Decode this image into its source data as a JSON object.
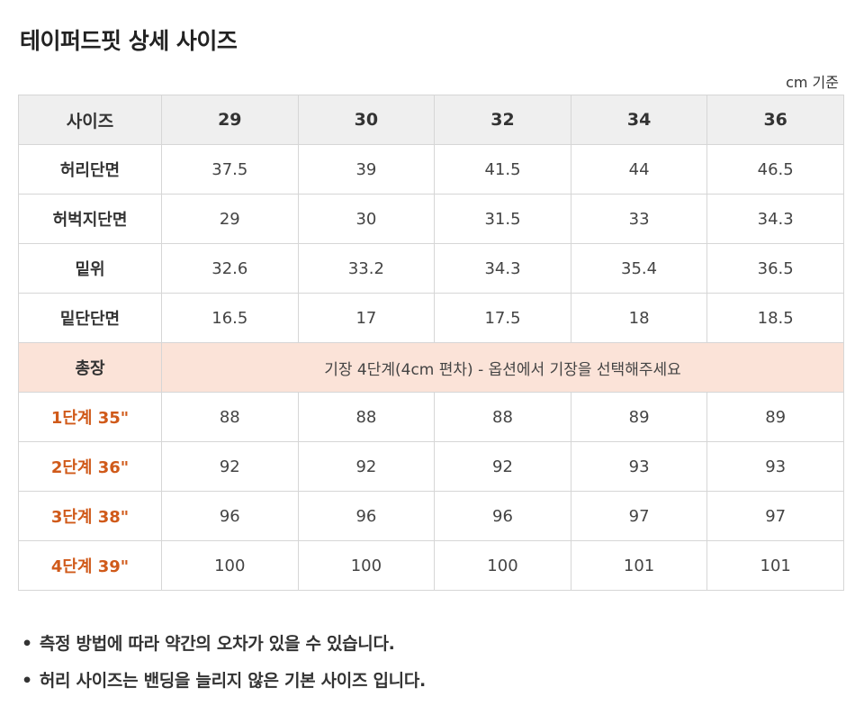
{
  "title": "테이퍼드핏 상세 사이즈",
  "unit_note": "cm 기준",
  "table": {
    "header": {
      "label": "사이즈",
      "sizes": [
        "29",
        "30",
        "32",
        "34",
        "36"
      ]
    },
    "rows": [
      {
        "label": "허리단면",
        "values": [
          "37.5",
          "39",
          "41.5",
          "44",
          "46.5"
        ]
      },
      {
        "label": "허벅지단면",
        "values": [
          "29",
          "30",
          "31.5",
          "33",
          "34.3"
        ]
      },
      {
        "label": "밑위",
        "values": [
          "32.6",
          "33.2",
          "34.3",
          "35.4",
          "36.5"
        ]
      },
      {
        "label": "밑단단면",
        "values": [
          "16.5",
          "17",
          "17.5",
          "18",
          "18.5"
        ]
      }
    ],
    "length_row": {
      "label": "총장",
      "note": "기장 4단계(4cm 편차) - 옵션에서 기장을 선택해주세요"
    },
    "length_rows": [
      {
        "label": "1단계 35\"",
        "values": [
          "88",
          "88",
          "88",
          "89",
          "89"
        ]
      },
      {
        "label": "2단계 36\"",
        "values": [
          "92",
          "92",
          "92",
          "93",
          "93"
        ]
      },
      {
        "label": "3단계 38\"",
        "values": [
          "96",
          "96",
          "96",
          "97",
          "97"
        ]
      },
      {
        "label": "4단계 39\"",
        "values": [
          "100",
          "100",
          "100",
          "101",
          "101"
        ]
      }
    ]
  },
  "footnotes": [
    {
      "bullet": "•",
      "text": "측정 방법에 따라 약간의 오차가 있을 수 있습니다."
    },
    {
      "bullet": "•",
      "text": "허리 사이즈는 밴딩을 늘리지 않은 기본 사이즈 입니다."
    }
  ],
  "colors": {
    "header_bg": "#efefef",
    "note_row_bg": "#fbe3d8",
    "length_label": "#d05a1a",
    "border": "#d6d6d6"
  }
}
